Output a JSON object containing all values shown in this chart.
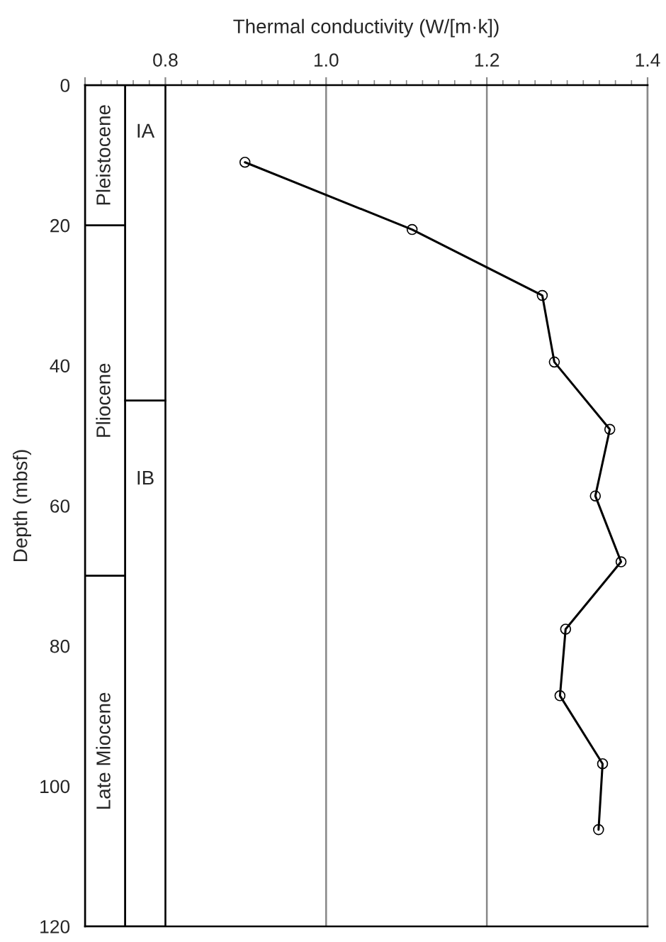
{
  "chart_data": {
    "type": "line",
    "xlabel": "Thermal conductivity (W/[m·k])",
    "ylabel": "Depth (mbsf)",
    "series": [
      {
        "color": "#000000",
        "x": [
          0.899,
          1.107,
          1.269,
          1.284,
          1.353,
          1.335,
          1.367,
          1.298,
          1.291,
          1.344,
          1.339
        ],
        "values": [
          11.0,
          20.6,
          30.0,
          39.5,
          49.1,
          58.6,
          68.0,
          77.6,
          87.1,
          96.8,
          106.2
        ]
      }
    ],
    "xlim": [
      0.7,
      1.4
    ],
    "xticks": [
      {
        "value": 0.7,
        "label": null
      },
      0.8,
      {
        "value": 1.0,
        "label": "1.0"
      },
      1.2,
      1.4
    ],
    "ylim": [
      120,
      0
    ],
    "yticks": [
      0,
      20,
      40,
      60,
      80,
      100,
      120
    ],
    "grid": "x",
    "marker": "circle",
    "line_style": "solid",
    "bands": [
      {
        "axis": "y",
        "from": 0,
        "to": 20,
        "label": "Pleistocene",
        "color": "#ffffff"
      },
      {
        "axis": "y",
        "from": 20,
        "to": 70,
        "label": "Pliocene",
        "color": "#ffffff"
      },
      {
        "axis": "y",
        "from": 70,
        "to": 120,
        "label": "Late Miocene",
        "color": "#ffffff"
      },
      {
        "axis": "y",
        "from": 0,
        "to": 45,
        "label": "IA",
        "color": "#ffffff"
      },
      {
        "axis": "y",
        "from": 45,
        "to": 120,
        "label": "IB",
        "color": "#ffffff"
      }
    ]
  }
}
